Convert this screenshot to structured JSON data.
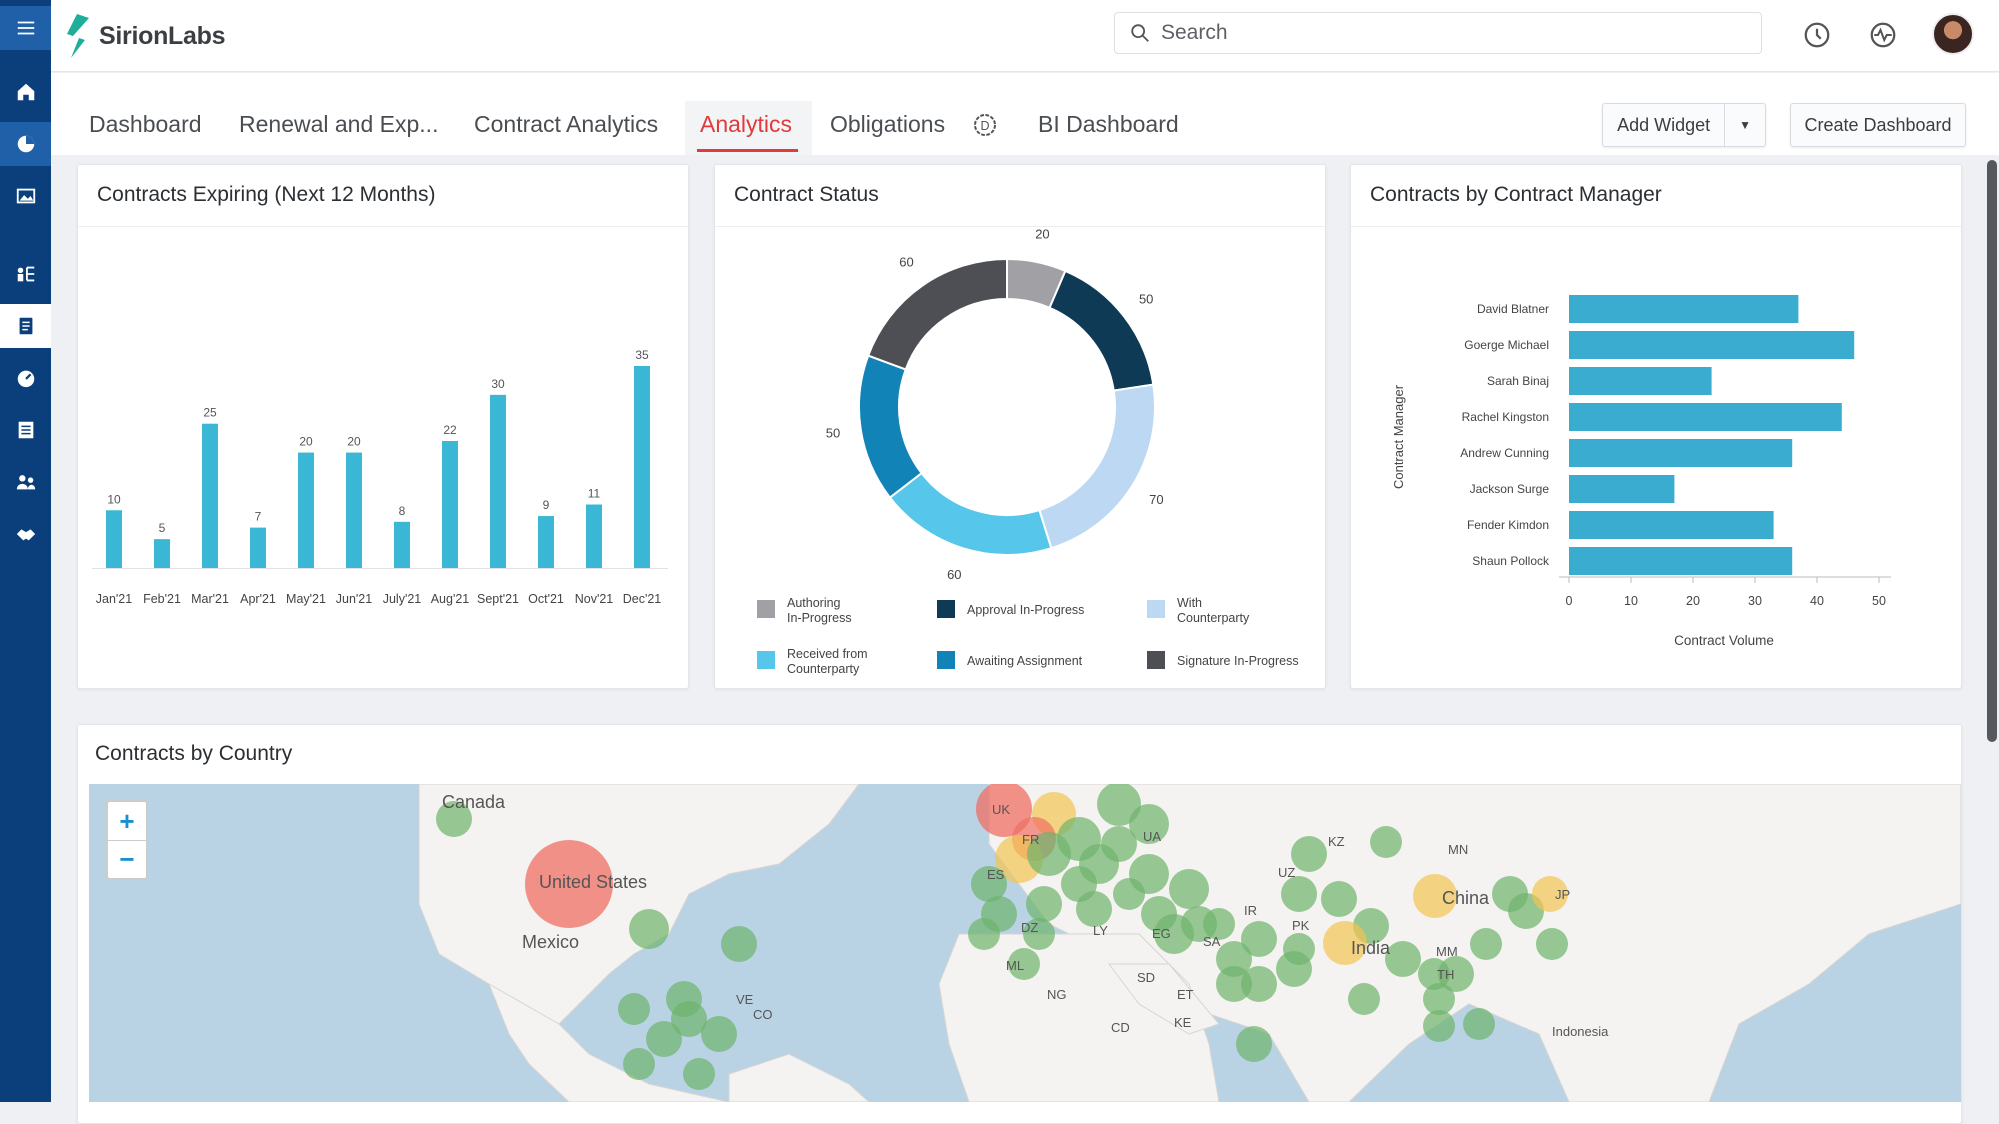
{
  "brand": {
    "name": "SirionLabs",
    "accent": "#e03a3a",
    "sidebar_color": "#0a3f7c"
  },
  "search": {
    "placeholder": "Search"
  },
  "sidebar": {
    "items": [
      "menu-icon",
      "home-icon",
      "pie-chart-icon",
      "image-chart-icon",
      "hierarchy-icon",
      "document-icon",
      "speedometer-icon",
      "list-icon",
      "users-icon",
      "handshake-icon"
    ]
  },
  "tabs": [
    {
      "label": "Dashboard"
    },
    {
      "label": "Renewal and Exp..."
    },
    {
      "label": "Contract Analytics"
    },
    {
      "label": "Analytics",
      "active": true
    },
    {
      "label": "Obligations"
    },
    {
      "label": "BI Dashboard"
    }
  ],
  "actions": {
    "add_widget": "Add Widget",
    "create_dashboard": "Create Dashboard"
  },
  "cards": {
    "expiring": {
      "title": "Contracts Expiring (Next 12 Months)"
    },
    "status": {
      "title": "Contract Status"
    },
    "manager": {
      "title": "Contracts by Contract Manager"
    },
    "country": {
      "title": "Contracts by Country"
    }
  },
  "chart_data": [
    {
      "type": "bar",
      "title": "Contracts Expiring (Next 12 Months)",
      "categories": [
        "Jan'21",
        "Feb'21",
        "Mar'21",
        "Apr'21",
        "May'21",
        "Jun'21",
        "July'21",
        "Aug'21",
        "Sept'21",
        "Oct'21",
        "Nov'21",
        "Dec'21"
      ],
      "values": [
        10,
        5,
        25,
        7,
        20,
        20,
        8,
        22,
        30,
        9,
        11,
        35
      ],
      "color": "#3ab7d4"
    },
    {
      "type": "pie",
      "title": "Contract Status",
      "slices": [
        {
          "name": "Authoring In-Progress",
          "value": 20,
          "color": "#a1a1a5"
        },
        {
          "name": "Approval In-Progress",
          "value": 50,
          "color": "#0e3a56"
        },
        {
          "name": "With Counterparty",
          "value": 70,
          "color": "#bcd8f2"
        },
        {
          "name": "Received from Counterparty",
          "value": 60,
          "color": "#56c6ea"
        },
        {
          "name": "Awaiting Assignment",
          "value": 50,
          "color": "#1283b6"
        },
        {
          "name": "Signature In-Progress",
          "value": 60,
          "color": "#4d4f54"
        }
      ]
    },
    {
      "type": "bar",
      "orientation": "horizontal",
      "title": "Contracts by Contract Manager",
      "categories": [
        "David Blatner",
        "Goerge Michael",
        "Sarah Binaj",
        "Rachel Kingston",
        "Andrew Cunning",
        "Jackson Surge",
        "Fender Kimdon",
        "Shaun Pollock"
      ],
      "values": [
        37,
        46,
        23,
        44,
        36,
        17,
        33,
        36
      ],
      "xlabel": "Contract Volume",
      "ylabel": "Contract Manager",
      "xlim": [
        0,
        50
      ],
      "xticks": [
        0,
        10,
        20,
        30,
        40,
        50
      ],
      "color": "#3aaccf"
    }
  ],
  "map": {
    "zoom_in": "+",
    "zoom_out": "−",
    "labels": [
      "Canada",
      "United States",
      "Mexico",
      "ES",
      "UA",
      "KZ",
      "MN",
      "UZ",
      "China",
      "JP",
      "IR",
      "PK",
      "India",
      "MM",
      "TH",
      "LY",
      "EG",
      "DZ",
      "SA",
      "ML",
      "SD",
      "NG",
      "ET",
      "VE",
      "CO",
      "CD",
      "KE",
      "Indonesia",
      "UK",
      "FR"
    ]
  }
}
